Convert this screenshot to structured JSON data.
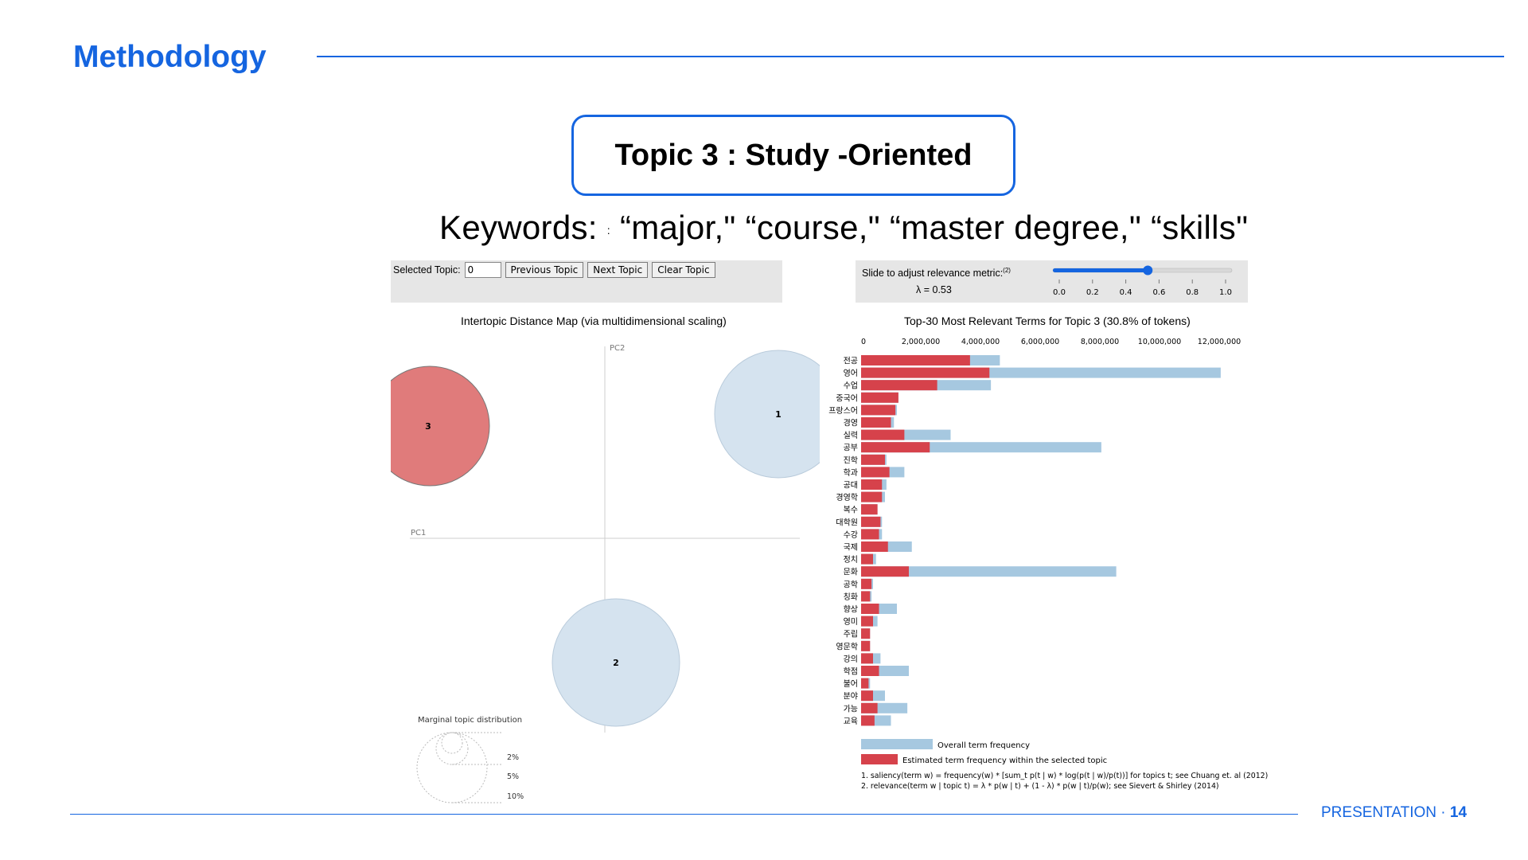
{
  "slide": {
    "title": "Methodology",
    "topic_heading": "Topic 3 : Study -Oriented",
    "keywords_label": "Keywords:",
    "keywords_colon": ":",
    "keywords_text": "“major,\" “course,\" “master degree,\" “skills\"",
    "footer_label": "PRESENTATION",
    "footer_sep": "·",
    "page_number": "14"
  },
  "colors": {
    "accent": "#1565e0",
    "topic_fill": "#e07b7b",
    "bubble_fill": "#d5e3ef",
    "overall_bar": "#a6c8e0",
    "topic_bar": "#d6424b"
  },
  "ldavis": {
    "selected_topic_label": "Selected Topic:",
    "selected_topic_value": "0",
    "prev_button": "Previous Topic",
    "next_button": "Next Topic",
    "clear_button": "Clear Topic",
    "slider_label": "Slide to adjust relevance metric:",
    "slider_footnote_mark": "(2)",
    "lambda_text": "λ = 0.53",
    "lambda_value": 0.53,
    "slider_ticks": [
      "0.0",
      "0.2",
      "0.4",
      "0.6",
      "0.8",
      "1.0"
    ],
    "map_title": "Intertopic Distance Map (via multidimensional scaling)",
    "pc1_label": "PC1",
    "pc2_label": "PC2",
    "topics": [
      {
        "id": "3",
        "selected": true
      },
      {
        "id": "1",
        "selected": false
      },
      {
        "id": "2",
        "selected": false
      }
    ],
    "marginal_title": "Marginal topic distribution",
    "marginal_levels": [
      "2%",
      "5%",
      "10%"
    ],
    "bar_chart_title": "Top-30 Most Relevant Terms for Topic 3 (30.8% of tokens)",
    "legend_overall": "Overall term frequency",
    "legend_topic": "Estimated term frequency within the selected topic",
    "footnote_1": "1. saliency(term w) = frequency(w) * [sum_t p(t | w) * log(p(t | w)/p(t))] for topics t; see Chuang et. al (2012)",
    "footnote_2": "2. relevance(term w | topic t) = λ * p(w | t) + (1 - λ) * p(w | t)/p(w); see Sievert & Shirley (2014)"
  },
  "chart_data": {
    "type": "bar",
    "orientation": "horizontal",
    "title": "Top-30 Most Relevant Terms for Topic 3 (30.8% of tokens)",
    "xlim": [
      0,
      12000000
    ],
    "x_ticks": [
      "0",
      "2,000,000",
      "4,000,000",
      "6,000,000",
      "8,000,000",
      "10,000,000",
      "12,000,000"
    ],
    "categories": [
      "전공",
      "영어",
      "수업",
      "중국어",
      "프랑스어",
      "경영",
      "실력",
      "공부",
      "진학",
      "학과",
      "공대",
      "경영학",
      "복수",
      "대학원",
      "수강",
      "국제",
      "정치",
      "문화",
      "공학",
      "칭화",
      "향상",
      "영미",
      "주립",
      "영문학",
      "강의",
      "학점",
      "불어",
      "분야",
      "가능",
      "교육"
    ],
    "series": [
      {
        "name": "Overall term frequency",
        "values": [
          4650000,
          12050000,
          4350000,
          1250000,
          1200000,
          1100000,
          3000000,
          8050000,
          850000,
          1450000,
          850000,
          800000,
          550000,
          700000,
          700000,
          1700000,
          500000,
          8550000,
          400000,
          350000,
          1200000,
          550000,
          300000,
          300000,
          650000,
          1600000,
          300000,
          800000,
          1550000,
          1000000
        ]
      },
      {
        "name": "Estimated term frequency within the selected topic",
        "values": [
          3650000,
          4300000,
          2550000,
          1250000,
          1150000,
          1000000,
          1450000,
          2300000,
          800000,
          950000,
          700000,
          700000,
          550000,
          650000,
          600000,
          900000,
          400000,
          1600000,
          350000,
          300000,
          600000,
          400000,
          300000,
          300000,
          400000,
          600000,
          250000,
          400000,
          550000,
          450000
        ]
      }
    ]
  }
}
